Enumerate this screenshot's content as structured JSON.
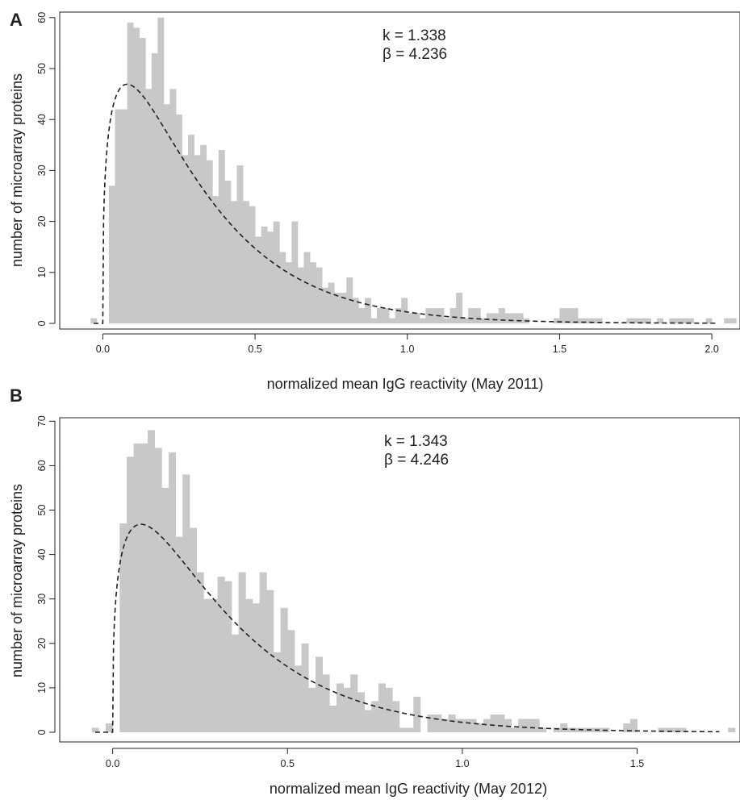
{
  "chart_data": [
    {
      "type": "bar",
      "panel_label": "A",
      "xlabel": "normalized mean IgG reactivity (May 2011)",
      "ylabel": "number of microarray proteins",
      "xlim": [
        -0.04,
        2.02
      ],
      "ylim": [
        0,
        60
      ],
      "xticks": [
        "0.0",
        "0.5",
        "1.0",
        "1.5",
        "2.0"
      ],
      "yticks": [
        "0",
        "10",
        "20",
        "30",
        "40",
        "50",
        "60"
      ],
      "annotation": {
        "k_text": "k = 1.338",
        "beta_text": "β = 4.236"
      },
      "fit": {
        "kind": "gamma",
        "shape_k": 1.338,
        "rate_beta": 4.236,
        "style": "dashed"
      },
      "bin_width": 0.02,
      "bin_start": -0.04,
      "values": [
        1,
        0,
        0,
        27,
        42,
        42,
        59,
        58,
        56,
        46,
        53,
        60,
        43,
        46,
        41,
        33,
        37,
        33,
        35,
        32,
        25,
        34,
        28,
        24,
        31,
        24,
        23,
        17,
        19,
        18,
        20,
        14,
        12,
        20,
        11,
        14,
        12,
        11,
        7,
        8,
        6,
        6,
        9,
        5,
        3,
        5,
        1,
        3,
        3,
        1,
        3,
        5,
        2,
        2,
        1,
        3,
        3,
        3,
        1,
        3,
        6,
        1,
        3,
        3,
        1,
        2,
        2,
        3,
        2,
        2,
        2,
        1,
        0,
        0,
        0,
        0,
        1,
        3,
        3,
        3,
        1,
        1,
        1,
        1,
        0,
        0,
        0,
        0,
        1,
        1,
        1,
        1,
        0,
        1,
        0,
        1,
        1,
        1,
        1,
        0,
        0,
        1,
        0,
        0,
        1,
        1,
        0,
        0,
        0,
        0,
        0,
        0,
        1
      ]
    },
    {
      "type": "bar",
      "panel_label": "B",
      "xlabel": "normalized mean IgG reactivity (May 2012)",
      "ylabel": "number of microarray proteins",
      "xlim": [
        -0.06,
        1.74
      ],
      "ylim": [
        0,
        70
      ],
      "xticks": [
        "0.0",
        "0.5",
        "1.0",
        "1.5"
      ],
      "yticks": [
        "0",
        "10",
        "20",
        "30",
        "40",
        "50",
        "60",
        "70"
      ],
      "annotation": {
        "k_text": "k = 1.343",
        "beta_text": "β = 4.246"
      },
      "fit": {
        "kind": "gamma",
        "shape_k": 1.343,
        "rate_beta": 4.246,
        "style": "dashed"
      },
      "bin_width": 0.02,
      "bin_start": -0.06,
      "values": [
        1,
        0,
        2,
        0,
        47,
        62,
        65,
        65,
        68,
        64,
        55,
        63,
        44,
        58,
        46,
        36,
        30,
        30,
        35,
        34,
        22,
        36,
        30,
        29,
        36,
        32,
        18,
        28,
        23,
        15,
        20,
        10,
        17,
        13,
        6,
        11,
        10,
        13,
        9,
        5,
        7,
        11,
        10,
        7,
        1,
        1,
        8,
        0,
        4,
        4,
        3,
        4,
        3,
        3,
        3,
        2,
        3,
        4,
        4,
        3,
        1,
        3,
        3,
        3,
        1,
        0,
        1,
        2,
        1,
        1,
        1,
        1,
        1,
        1,
        0,
        0,
        2,
        3,
        0,
        0,
        0,
        1,
        1,
        1,
        1,
        0,
        0,
        0,
        0,
        0,
        0,
        1
      ]
    }
  ]
}
